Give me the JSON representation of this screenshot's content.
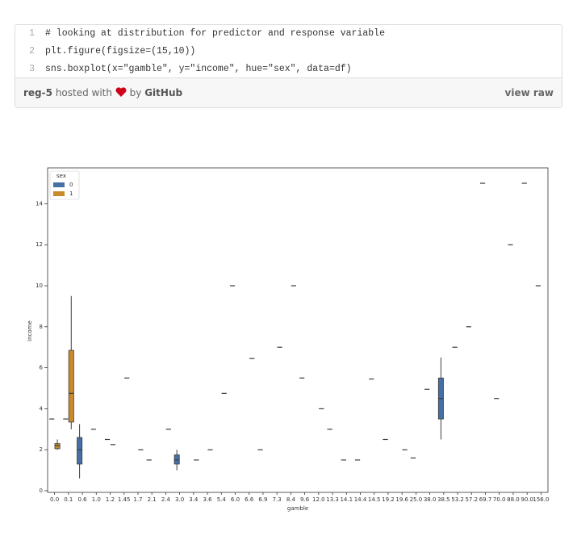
{
  "gist": {
    "lines": [
      {
        "number": "1",
        "code": "# looking at distribution for predictor and response variable"
      },
      {
        "number": "2",
        "code": "plt.figure(figsize=(15,10))"
      },
      {
        "number": "3",
        "code": "sns.boxplot(x=\"gamble\", y=\"income\", hue=\"sex\", data=df)"
      }
    ],
    "file": "reg-5",
    "hosted": "hosted with",
    "by": "by",
    "brand": "GitHub",
    "raw": "view raw"
  },
  "chart_data": {
    "type": "box",
    "x_label": "gamble",
    "y_label": "income",
    "legend_title": "sex",
    "legend": "upper left",
    "categories": [
      "0.0",
      "0.1",
      "0.6",
      "1.0",
      "1.2",
      "1.45",
      "1.7",
      "2.1",
      "2.4",
      "3.0",
      "3.4",
      "3.6",
      "5.4",
      "6.0",
      "6.6",
      "6.9",
      "7.3",
      "8.4",
      "9.6",
      "12.0",
      "13.3",
      "14.1",
      "14.4",
      "14.5",
      "19.2",
      "19.6",
      "25.0",
      "38.0",
      "38.5",
      "53.2",
      "57.2",
      "69.7",
      "70.0",
      "88.0",
      "90.0",
      "156.0"
    ],
    "ylim": [
      -0.08,
      15.75
    ],
    "yticks": [
      0,
      2,
      4,
      6,
      8,
      10,
      12,
      14
    ],
    "series": [
      {
        "name": "0",
        "color": "#4470a5",
        "min": [
          null,
          null,
          0.6,
          null,
          null,
          null,
          null,
          null,
          null,
          1.0,
          null,
          null,
          null,
          null,
          null,
          null,
          null,
          null,
          null,
          null,
          null,
          null,
          null,
          null,
          null,
          null,
          null,
          null,
          2.5,
          null,
          null,
          null,
          null,
          null,
          null,
          null
        ],
        "q1": [
          null,
          null,
          1.3,
          null,
          null,
          null,
          null,
          null,
          null,
          1.3,
          null,
          null,
          null,
          null,
          null,
          null,
          null,
          null,
          null,
          null,
          null,
          null,
          null,
          null,
          null,
          null,
          null,
          null,
          3.5,
          null,
          null,
          null,
          null,
          null,
          null,
          null
        ],
        "median": [
          3.5,
          3.5,
          2.0,
          3.0,
          2.5,
          null,
          null,
          1.5,
          null,
          1.5,
          null,
          null,
          null,
          10,
          null,
          2.0,
          null,
          null,
          5.5,
          null,
          3.0,
          1.5,
          1.5,
          5.45,
          2.5,
          null,
          1.6,
          4.95,
          4.5,
          7,
          8,
          15,
          4.5,
          12,
          15,
          10
        ],
        "q3": [
          null,
          null,
          2.6,
          null,
          null,
          null,
          null,
          null,
          null,
          1.75,
          null,
          null,
          null,
          null,
          null,
          null,
          null,
          null,
          null,
          null,
          null,
          null,
          null,
          null,
          null,
          null,
          null,
          null,
          5.5,
          null,
          null,
          null,
          null,
          null,
          null,
          null
        ],
        "max": [
          null,
          null,
          3.25,
          null,
          null,
          null,
          null,
          null,
          null,
          2.0,
          null,
          null,
          null,
          null,
          null,
          null,
          null,
          null,
          null,
          null,
          null,
          null,
          null,
          null,
          null,
          null,
          null,
          null,
          6.5,
          null,
          null,
          null,
          null,
          null,
          null,
          null
        ]
      },
      {
        "name": "1",
        "color": "#c98a2b",
        "min": [
          2.0,
          3.0,
          null,
          null,
          null,
          null,
          null,
          null,
          null,
          null,
          null,
          null,
          null,
          null,
          null,
          null,
          null,
          null,
          null,
          null,
          null,
          null,
          null,
          null,
          null,
          null,
          null,
          null,
          null,
          null,
          null,
          null,
          null,
          null,
          null,
          null
        ],
        "q1": [
          2.05,
          3.35,
          null,
          null,
          null,
          null,
          null,
          null,
          null,
          null,
          null,
          null,
          null,
          null,
          null,
          null,
          null,
          null,
          null,
          null,
          null,
          null,
          null,
          null,
          null,
          null,
          null,
          null,
          null,
          null,
          null,
          null,
          null,
          null,
          null,
          null
        ],
        "median": [
          2.2,
          4.75,
          null,
          null,
          2.25,
          5.5,
          2.0,
          null,
          3.0,
          null,
          1.5,
          2.0,
          4.75,
          null,
          6.45,
          null,
          7.0,
          10,
          null,
          4.0,
          null,
          null,
          null,
          null,
          null,
          2.0,
          null,
          null,
          null,
          null,
          null,
          null,
          null,
          null,
          null,
          null
        ],
        "q3": [
          2.3,
          6.85,
          null,
          null,
          null,
          null,
          null,
          null,
          null,
          null,
          null,
          null,
          null,
          null,
          null,
          null,
          null,
          null,
          null,
          null,
          null,
          null,
          null,
          null,
          null,
          null,
          null,
          null,
          null,
          null,
          null,
          null,
          null,
          null,
          null,
          null
        ],
        "max": [
          2.5,
          9.5,
          null,
          null,
          null,
          null,
          null,
          null,
          null,
          null,
          null,
          null,
          null,
          null,
          null,
          null,
          null,
          null,
          null,
          null,
          null,
          null,
          null,
          null,
          null,
          null,
          null,
          null,
          null,
          null,
          null,
          null,
          null,
          null,
          null,
          null
        ]
      }
    ]
  }
}
